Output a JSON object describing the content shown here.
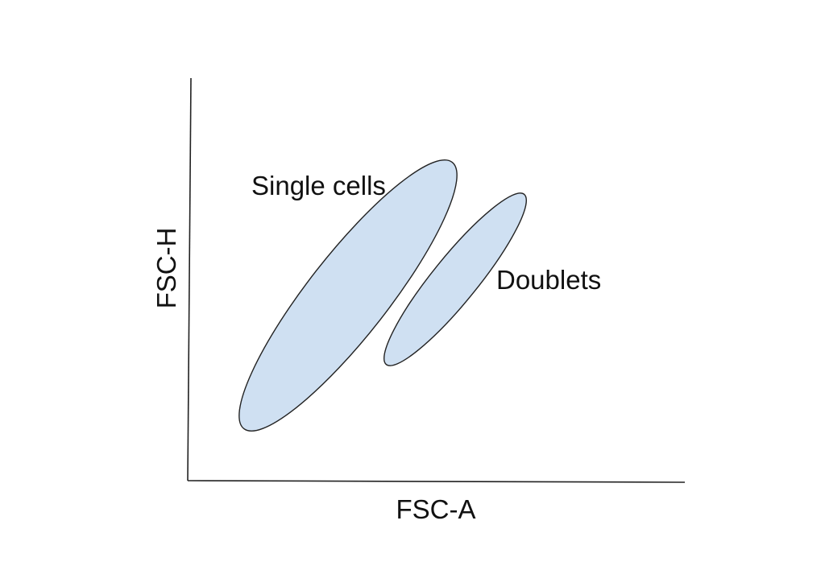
{
  "axes": {
    "x_label": "FSC-A",
    "y_label": "FSC-H"
  },
  "populations": {
    "single": {
      "label": "Single cells",
      "fill": "#cfe0f2",
      "stroke": "#222222"
    },
    "doublets": {
      "label": "Doublets",
      "fill": "#cfe0f2",
      "stroke": "#222222"
    }
  },
  "colors": {
    "axis": "#222222",
    "text": "#111111",
    "background": "#ffffff"
  }
}
